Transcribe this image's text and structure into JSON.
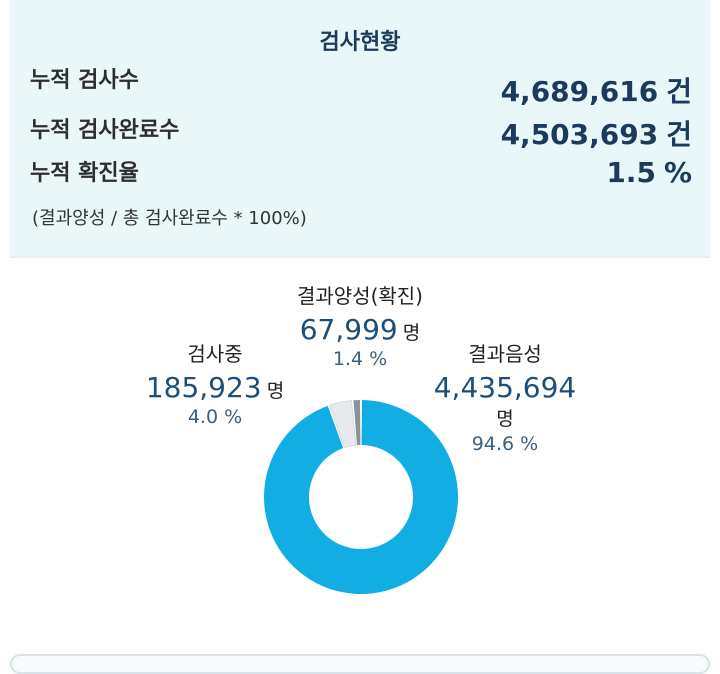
{
  "summary": {
    "title": "검사현황",
    "rows": [
      {
        "label": "누적 검사수",
        "value": "4,689,616",
        "unit": "건"
      },
      {
        "label": "누적 검사완료수",
        "value": "4,503,693",
        "unit": "건"
      },
      {
        "label": "누적 확진율",
        "value": "1.5",
        "unit": "%"
      }
    ],
    "note": "(결과양성 / 총 검사완료수 * 100%)"
  },
  "donut": {
    "segments": [
      {
        "label": "결과음성",
        "value": "4,435,694",
        "unit": "명",
        "percent": "94.6 %",
        "share": 94.6,
        "color": "#12aee3"
      },
      {
        "label": "검사중",
        "value": "185,923",
        "unit": "명",
        "percent": "4.0 %",
        "share": 4.0,
        "color": "#e7eaed"
      },
      {
        "label": "결과양성(확진)",
        "value": "67,999",
        "unit": "명",
        "percent": "1.4 %",
        "share": 1.4,
        "color": "#8a9296"
      }
    ]
  }
}
